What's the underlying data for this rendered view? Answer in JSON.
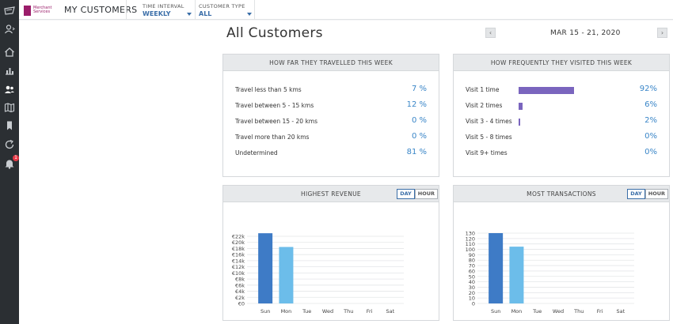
{
  "topbar": {
    "logo_text": "Merchant Services",
    "title": "MY CUSTOMERS",
    "filters": [
      {
        "label": "TIME INTERVAL",
        "value": "WEEKLY"
      },
      {
        "label": "CUSTOMER TYPE",
        "value": "ALL"
      }
    ]
  },
  "sidebar": {
    "icons": [
      "logo-icon",
      "user-icon",
      "home-icon",
      "bar-chart-icon",
      "customers-icon",
      "map-icon",
      "bookmark-icon",
      "refresh-icon",
      "bell-icon"
    ],
    "notification_count": "1"
  },
  "page": {
    "title": "All Customers",
    "date_range": "MAR 15 - 21, 2020",
    "prev_label": "‹",
    "next_label": "›"
  },
  "travel_card": {
    "title": "HOW FAR THEY TRAVELLED THIS WEEK",
    "rows": [
      {
        "label": "Travel less than 5 kms",
        "value": "7 %"
      },
      {
        "label": "Travel between 5 - 15 kms",
        "value": "12 %"
      },
      {
        "label": "Travel between 15 - 20 kms",
        "value": "0 %"
      },
      {
        "label": "Travel more than 20 kms",
        "value": "0 %"
      },
      {
        "label": "Undetermined",
        "value": "81 %"
      }
    ]
  },
  "visits_card": {
    "title": "HOW FREQUENTLY THEY VISITED THIS WEEK",
    "rows": [
      {
        "label": "Visit 1 time",
        "value": "92%",
        "fraction": 0.92
      },
      {
        "label": "Visit 2 times",
        "value": "6%",
        "fraction": 0.06
      },
      {
        "label": "Visit 3 - 4 times",
        "value": "2%",
        "fraction": 0.02
      },
      {
        "label": "Visit 5 - 8 times",
        "value": "0%",
        "fraction": 0
      },
      {
        "label": "Visit 9+ times",
        "value": "0%",
        "fraction": 0
      }
    ]
  },
  "toggle": {
    "day": "DAY",
    "hour": "HOUR"
  },
  "chart_data": [
    {
      "type": "bar",
      "title": "HIGHEST REVENUE",
      "categories": [
        "Sun",
        "Mon",
        "Tue",
        "Wed",
        "Thu",
        "Fri",
        "Sat"
      ],
      "values": [
        23000,
        18500,
        0,
        0,
        0,
        0,
        0
      ],
      "ylim": [
        0,
        22000
      ],
      "yticks": [
        0,
        2000,
        4000,
        6000,
        8000,
        10000,
        12000,
        14000,
        16000,
        18000,
        20000,
        22000
      ],
      "ytick_labels": [
        "€0",
        "€2k",
        "€4k",
        "€6k",
        "€8k",
        "€10k",
        "€12k",
        "€14k",
        "€16k",
        "€18k",
        "€20k",
        "€22k"
      ],
      "colors": [
        "#3e7bc6",
        "#6cbdea"
      ],
      "grid": true
    },
    {
      "type": "bar",
      "title": "MOST TRANSACTIONS",
      "categories": [
        "Sun",
        "Mon",
        "Tue",
        "Wed",
        "Thu",
        "Fri",
        "Sat"
      ],
      "values": [
        130,
        105,
        0,
        0,
        0,
        0,
        0
      ],
      "ylim": [
        0,
        130
      ],
      "yticks": [
        0,
        10,
        20,
        30,
        40,
        50,
        60,
        70,
        80,
        90,
        100,
        110,
        120,
        130
      ],
      "ytick_labels": [
        "0",
        "10",
        "20",
        "30",
        "40",
        "50",
        "60",
        "70",
        "80",
        "90",
        "100",
        "110",
        "120",
        "130"
      ],
      "colors": [
        "#3e7bc6",
        "#6cbdea"
      ],
      "grid": true
    }
  ]
}
